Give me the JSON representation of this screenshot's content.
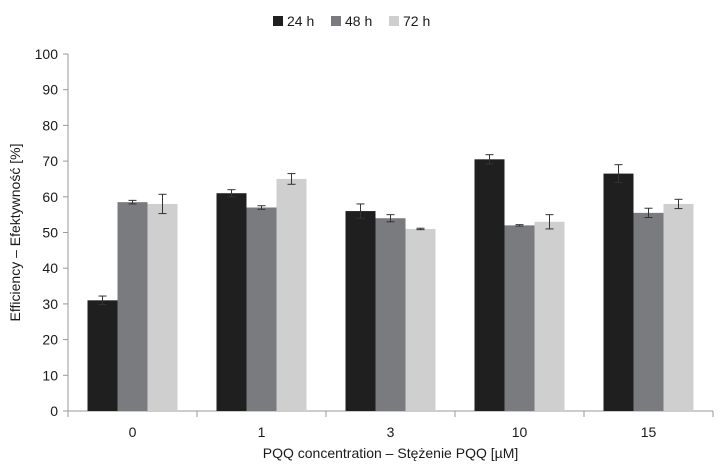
{
  "chart_data": {
    "type": "bar",
    "title": "",
    "xlabel": "PQQ concentration – Stężenie PQQ  [µM]",
    "ylabel": "Efficiency – Efektywność [%]",
    "ylim": [
      0,
      100
    ],
    "yticks": [
      "0",
      "10",
      "20",
      "30",
      "40",
      "50",
      "60",
      "70",
      "80",
      "90",
      "100"
    ],
    "categories": [
      "0",
      "1",
      "3",
      "10",
      "15"
    ],
    "series": [
      {
        "name": "24 h",
        "color": "#1f1f1f",
        "values": [
          31,
          61,
          56,
          70.5,
          66.5
        ],
        "errors": [
          1.2,
          1.0,
          2.0,
          1.3,
          2.5
        ]
      },
      {
        "name": "48 h",
        "color": "#7a7b7e",
        "values": [
          58.5,
          57,
          54,
          52,
          55.5
        ],
        "errors": [
          0.5,
          0.5,
          1.0,
          0.2,
          1.3
        ]
      },
      {
        "name": "72 h",
        "color": "#cfcfcf",
        "values": [
          58,
          65,
          51,
          53,
          58
        ],
        "errors": [
          2.7,
          1.5,
          0.2,
          2.0,
          1.3
        ]
      }
    ],
    "legend_position": "top",
    "grid": false,
    "error_bars": true
  }
}
